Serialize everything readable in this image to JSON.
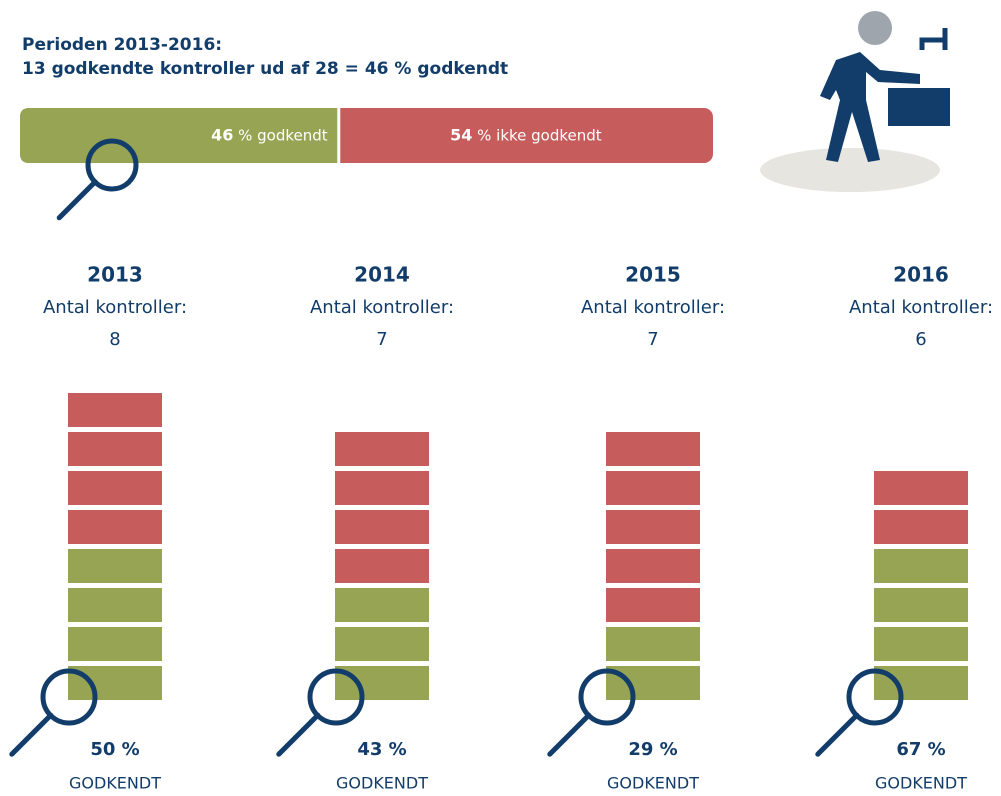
{
  "header": {
    "lines": [
      "Perioden 2013-2016:",
      "13 godkendte kontroller ud af 28 = 46 % godkendt"
    ]
  },
  "summary": {
    "approved": {
      "value": 46,
      "text": "% godkendt"
    },
    "rejected": {
      "value": 54,
      "text": "% ikke godkendt"
    }
  },
  "years": [
    {
      "year": "2013",
      "count_label": "Antal kontroller:",
      "count": 8,
      "approved": 4,
      "percent": "50 %",
      "status": "GODKENDT"
    },
    {
      "year": "2014",
      "count_label": "Antal kontroller:",
      "count": 7,
      "approved": 3,
      "percent": "43 %",
      "status": "GODKENDT"
    },
    {
      "year": "2015",
      "count_label": "Antal kontroller:",
      "count": 7,
      "approved": 2,
      "percent": "29 %",
      "status": "GODKENDT"
    },
    {
      "year": "2016",
      "count_label": "Antal kontroller:",
      "count": 6,
      "approved": 4,
      "percent": "67 %",
      "status": "GODKENDT"
    }
  ],
  "colors": {
    "approved": "#97a454",
    "rejected": "#c65c5c",
    "ink": "#123d6a"
  }
}
